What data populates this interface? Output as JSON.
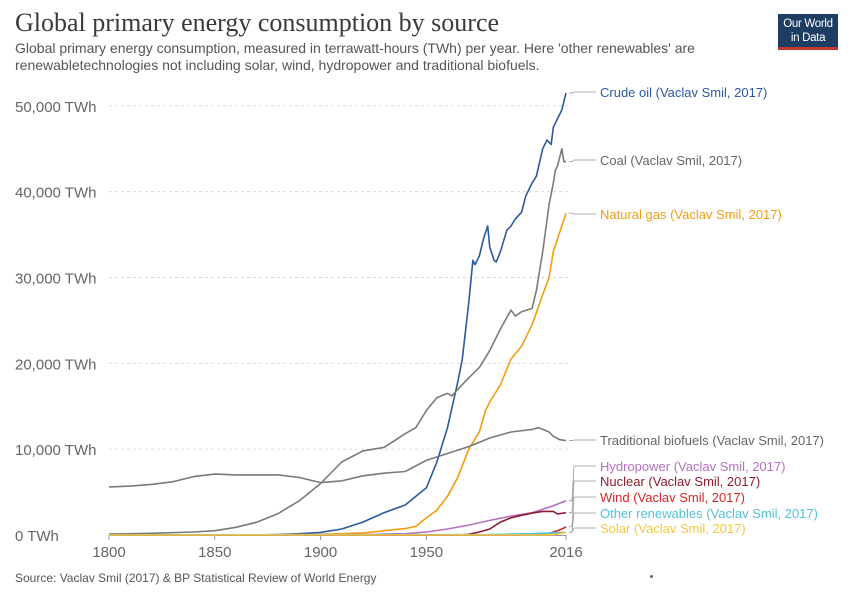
{
  "title": "Global primary energy consumption by source",
  "subtitle": "Global primary energy consumption, measured in terrawatt-hours (TWh) per year. Here 'other renewables' are renewabletechnologies not including solar, wind, hydropower and traditional biofuels.",
  "logo": {
    "line1": "Our World",
    "line2": "in Data"
  },
  "source": "Source: Vaclav Smil (2017) & BP Statistical Review of World Energy",
  "chart_data": {
    "type": "line",
    "xlim": [
      1800,
      2016
    ],
    "ylim": [
      0,
      52000
    ],
    "x_ticks": [
      1800,
      1850,
      1900,
      1950,
      2016
    ],
    "y_ticks": [
      {
        "value": 0,
        "label": "0 TWh"
      },
      {
        "value": 10000,
        "label": "10,000 TWh"
      },
      {
        "value": 20000,
        "label": "20,000 TWh"
      },
      {
        "value": 30000,
        "label": "30,000 TWh"
      },
      {
        "value": 40000,
        "label": "40,000 TWh"
      },
      {
        "value": 50000,
        "label": "50,000 TWh"
      }
    ],
    "grid": "horizontal-dashed",
    "series": [
      {
        "name": "Crude oil (Vaclav Smil, 2017)",
        "color": "#2c5aa0",
        "x": [
          1800,
          1860,
          1870,
          1880,
          1890,
          1900,
          1910,
          1920,
          1930,
          1940,
          1950,
          1955,
          1960,
          1965,
          1967,
          1970,
          1972,
          1973,
          1975,
          1977,
          1979,
          1980,
          1982,
          1983,
          1985,
          1988,
          1990,
          1992,
          1995,
          1997,
          2000,
          2002,
          2005,
          2007,
          2009,
          2010,
          2012,
          2014,
          2016
        ],
        "y": [
          0,
          0,
          10,
          60,
          150,
          300,
          700,
          1500,
          2600,
          3500,
          5500,
          8500,
          12500,
          18000,
          20500,
          27000,
          32000,
          31500,
          32500,
          34500,
          36000,
          33500,
          32000,
          31800,
          33000,
          35500,
          36000,
          36800,
          37600,
          39500,
          41000,
          41800,
          45000,
          46000,
          45500,
          47500,
          48500,
          49500,
          51500
        ]
      },
      {
        "name": "Coal (Vaclav Smil, 2017)",
        "color": "#7a7a7a",
        "x": [
          1800,
          1820,
          1840,
          1850,
          1860,
          1870,
          1880,
          1890,
          1900,
          1910,
          1920,
          1930,
          1940,
          1945,
          1950,
          1955,
          1960,
          1962,
          1965,
          1970,
          1975,
          1980,
          1985,
          1990,
          1992,
          1995,
          2000,
          2002,
          2005,
          2008,
          2010,
          2011,
          2012,
          2013,
          2014,
          2015,
          2016
        ],
        "y": [
          100,
          200,
          350,
          500,
          900,
          1500,
          2500,
          4000,
          6000,
          8500,
          9800,
          10200,
          11800,
          12500,
          14500,
          16000,
          16500,
          16200,
          17000,
          18300,
          19500,
          21500,
          24000,
          26200,
          25500,
          26000,
          26400,
          28500,
          33000,
          38500,
          41000,
          42500,
          43000,
          44000,
          45000,
          43500,
          43500
        ]
      },
      {
        "name": "Natural gas (Vaclav Smil, 2017)",
        "color": "#f39c12",
        "x": [
          1800,
          1880,
          1890,
          1900,
          1910,
          1920,
          1930,
          1940,
          1945,
          1950,
          1955,
          1960,
          1965,
          1970,
          1975,
          1978,
          1980,
          1985,
          1990,
          1995,
          2000,
          2005,
          2008,
          2010,
          2012,
          2014,
          2016
        ],
        "y": [
          0,
          20,
          50,
          70,
          150,
          250,
          500,
          750,
          1000,
          2000,
          2900,
          4500,
          6800,
          10000,
          12000,
          14500,
          15500,
          17500,
          20500,
          22000,
          24500,
          28000,
          30000,
          33000,
          34500,
          36000,
          37500
        ]
      },
      {
        "name": "Traditional biofuels (Vaclav Smil, 2017)",
        "color": "#7a7a7a",
        "x": [
          1800,
          1810,
          1820,
          1830,
          1840,
          1850,
          1860,
          1870,
          1880,
          1890,
          1900,
          1910,
          1920,
          1930,
          1940,
          1950,
          1960,
          1970,
          1980,
          1990,
          2000,
          2003,
          2005,
          2008,
          2010,
          2013,
          2016
        ],
        "y": [
          5600,
          5700,
          5900,
          6200,
          6800,
          7100,
          7000,
          7000,
          7000,
          6700,
          6100,
          6300,
          6900,
          7200,
          7400,
          8700,
          9500,
          10300,
          11300,
          12000,
          12300,
          12500,
          12300,
          12000,
          11500,
          11100,
          11000
        ]
      },
      {
        "name": "Hydropower (Vaclav Smil, 2017)",
        "color": "#b770c1",
        "x": [
          1800,
          1900,
          1920,
          1930,
          1940,
          1950,
          1960,
          1970,
          1980,
          1990,
          2000,
          2010,
          2016
        ],
        "y": [
          0,
          0,
          50,
          100,
          150,
          350,
          700,
          1150,
          1700,
          2200,
          2600,
          3400,
          4000
        ]
      },
      {
        "name": "Nuclear (Vaclav Smil, 2017)",
        "color": "#8e1c2c",
        "x": [
          1800,
          1965,
          1970,
          1975,
          1980,
          1985,
          1990,
          1995,
          2000,
          2005,
          2010,
          2012,
          2016
        ],
        "y": [
          0,
          0,
          80,
          350,
          700,
          1500,
          2000,
          2300,
          2550,
          2750,
          2750,
          2450,
          2600
        ]
      },
      {
        "name": "Wind (Vaclav Smil, 2017)",
        "color": "#d62728",
        "x": [
          1800,
          1995,
          2000,
          2005,
          2008,
          2010,
          2012,
          2014,
          2016
        ],
        "y": [
          0,
          0,
          30,
          100,
          200,
          340,
          500,
          700,
          960
        ]
      },
      {
        "name": "Other renewables (Vaclav Smil, 2017)",
        "color": "#4fc3d7",
        "x": [
          1800,
          1980,
          1990,
          2000,
          2010,
          2016
        ],
        "y": [
          0,
          50,
          100,
          150,
          250,
          320
        ]
      },
      {
        "name": "Solar (Vaclav Smil, 2017)",
        "color": "#f5c842",
        "x": [
          1800,
          2005,
          2008,
          2010,
          2012,
          2014,
          2016
        ],
        "y": [
          0,
          0,
          20,
          40,
          100,
          200,
          330
        ]
      }
    ]
  }
}
